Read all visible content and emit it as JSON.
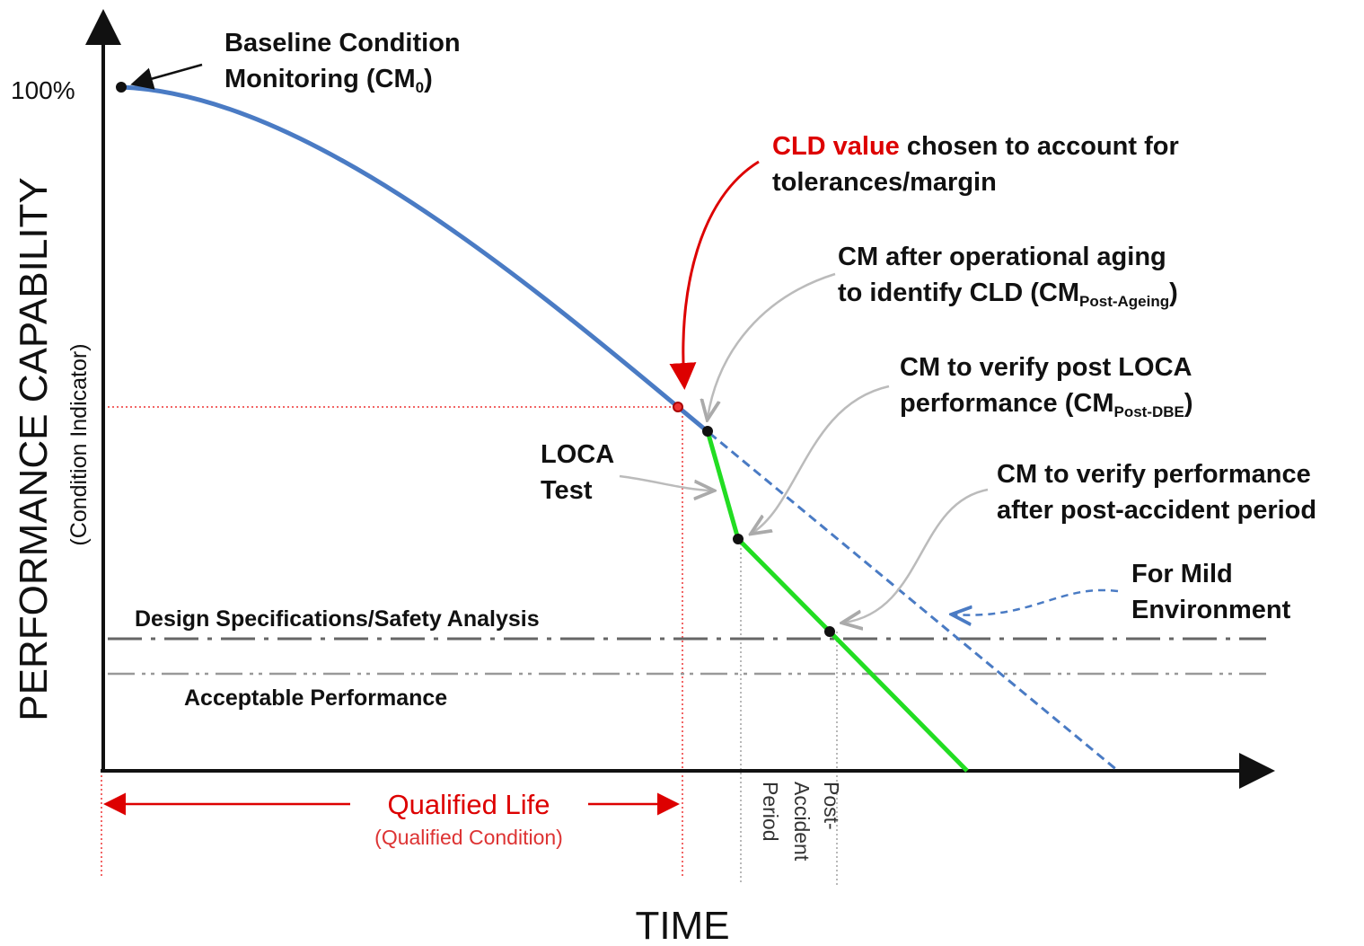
{
  "axes": {
    "y_label": "PERFORMANCE CAPABILITY",
    "y_sublabel": "(Condition Indicator)",
    "y_tick": "100%",
    "x_label": "TIME"
  },
  "annotations": {
    "baseline": {
      "line1": "Baseline Condition",
      "line2": "Monitoring (CM",
      "line2_sub": "0",
      "line2_end": ")"
    },
    "cld": {
      "highlight": "CLD value",
      "line1": "chosen to account for",
      "line2": "tolerances/margin"
    },
    "post_ageing": {
      "line1": "CM after operational aging",
      "line2": "to identify CLD (CM",
      "line2_sub": "Post-Ageing",
      "line2_end": ")"
    },
    "post_dbe": {
      "line1": "CM to verify post LOCA",
      "line2": "performance (CM",
      "line2_sub": "Post-DBE",
      "line2_end": ")"
    },
    "loca": {
      "line1": "LOCA",
      "line2": "Test"
    },
    "post_accident": {
      "line1": "CM to verify performance",
      "line2": "after post-accident period"
    },
    "mild": {
      "line1": "For Mild",
      "line2": "Environment"
    },
    "design_spec": "Design Specifications/Safety Analysis",
    "acceptable": "Acceptable Performance",
    "qualified_life": {
      "title": "Qualified Life",
      "subtitle": "(Qualified Condition)"
    },
    "period_label": {
      "line1": "Post-",
      "line2": "Accident",
      "line3": "Period"
    }
  }
}
